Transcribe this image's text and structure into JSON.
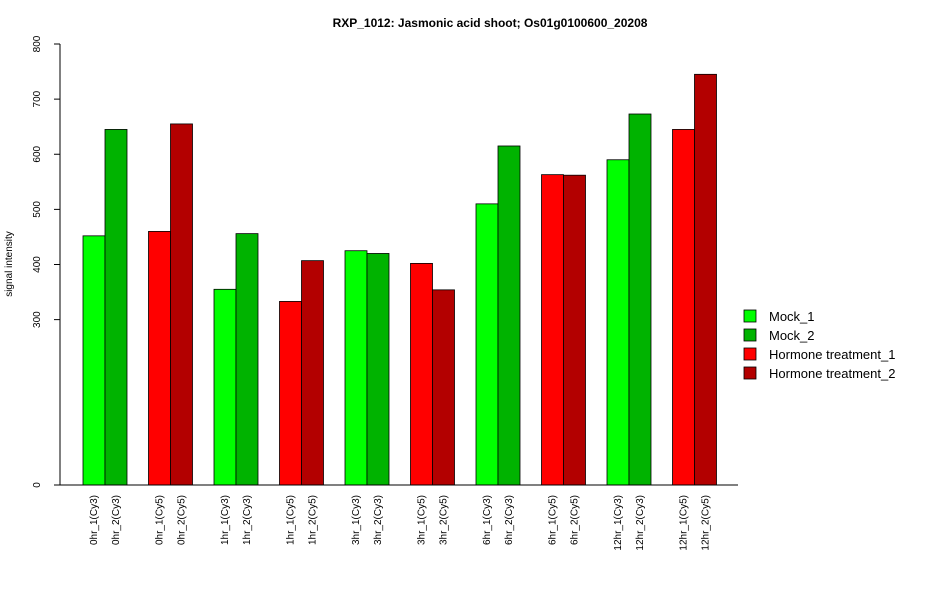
{
  "chart_data": {
    "type": "bar",
    "title": "RXP_1012: Jasmonic acid shoot; Os01g0100600_20208",
    "xlabel": "",
    "ylabel": "signal intensity",
    "y_ticks": [
      0,
      300,
      400,
      500,
      600,
      700,
      800
    ],
    "ylim": [
      0,
      800
    ],
    "legend_position": "right",
    "series": [
      {
        "name": "Mock_1",
        "color": "#00FF00"
      },
      {
        "name": "Mock_2",
        "color": "#00B300"
      },
      {
        "name": "Hormone treatment_1",
        "color": "#FF0000"
      },
      {
        "name": "Hormone treatment_2",
        "color": "#B30000"
      }
    ],
    "groups": [
      {
        "bars": [
          {
            "label": "0hr_1(Cy3)",
            "value": 452,
            "series": 0
          },
          {
            "label": "0hr_2(Cy3)",
            "value": 645,
            "series": 1
          }
        ]
      },
      {
        "bars": [
          {
            "label": "0hr_1(Cy5)",
            "value": 460,
            "series": 2
          },
          {
            "label": "0hr_2(Cy5)",
            "value": 655,
            "series": 3
          }
        ]
      },
      {
        "bars": [
          {
            "label": "1hr_1(Cy3)",
            "value": 355,
            "series": 0
          },
          {
            "label": "1hr_2(Cy3)",
            "value": 456,
            "series": 1
          }
        ]
      },
      {
        "bars": [
          {
            "label": "1hr_1(Cy5)",
            "value": 333,
            "series": 2
          },
          {
            "label": "1hr_2(Cy5)",
            "value": 407,
            "series": 3
          }
        ]
      },
      {
        "bars": [
          {
            "label": "3hr_1(Cy3)",
            "value": 425,
            "series": 0
          },
          {
            "label": "3hr_2(Cy3)",
            "value": 420,
            "series": 1
          }
        ]
      },
      {
        "bars": [
          {
            "label": "3hr_1(Cy5)",
            "value": 402,
            "series": 2
          },
          {
            "label": "3hr_2(Cy5)",
            "value": 354,
            "series": 3
          }
        ]
      },
      {
        "bars": [
          {
            "label": "6hr_1(Cy3)",
            "value": 510,
            "series": 0
          },
          {
            "label": "6hr_2(Cy3)",
            "value": 615,
            "series": 1
          }
        ]
      },
      {
        "bars": [
          {
            "label": "6hr_1(Cy5)",
            "value": 563,
            "series": 2
          },
          {
            "label": "6hr_2(Cy5)",
            "value": 562,
            "series": 3
          }
        ]
      },
      {
        "bars": [
          {
            "label": "12hr_1(Cy3)",
            "value": 590,
            "series": 0
          },
          {
            "label": "12hr_2(Cy3)",
            "value": 673,
            "series": 1
          }
        ]
      },
      {
        "bars": [
          {
            "label": "12hr_1(Cy5)",
            "value": 645,
            "series": 2
          },
          {
            "label": "12hr_2(Cy5)",
            "value": 745,
            "series": 3
          }
        ]
      }
    ]
  }
}
